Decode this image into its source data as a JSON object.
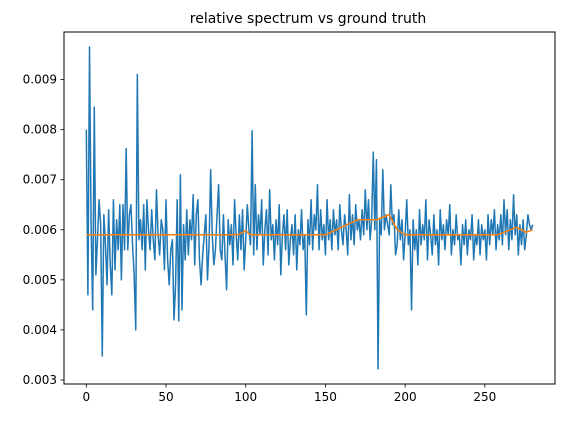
{
  "chart_data": {
    "type": "line",
    "title": "relative spectrum vs ground truth",
    "xlabel": "",
    "ylabel": "",
    "xlim": [
      -14,
      294
    ],
    "ylim": [
      0.00292,
      0.00995
    ],
    "xticks": [
      0,
      50,
      100,
      150,
      200,
      250
    ],
    "yticks": [
      0.003,
      0.004,
      0.005,
      0.006,
      0.007,
      0.008,
      0.009
    ],
    "ytick_labels": [
      "0.003",
      "0.004",
      "0.005",
      "0.006",
      "0.007",
      "0.008",
      "0.009"
    ],
    "grid": false,
    "legend": false,
    "series": [
      {
        "color": "#1f77b4",
        "x_start": 0,
        "x_step": 1,
        "values": [
          0.008,
          0.0047,
          0.00965,
          0.0061,
          0.0044,
          0.00845,
          0.0051,
          0.0058,
          0.0066,
          0.0061,
          0.00348,
          0.0063,
          0.0057,
          0.0049,
          0.0064,
          0.0053,
          0.0047,
          0.0066,
          0.0052,
          0.0062,
          0.0056,
          0.0065,
          0.005,
          0.0065,
          0.0056,
          0.00762,
          0.0056,
          0.0063,
          0.0065,
          0.0057,
          0.0051,
          0.004,
          0.0091,
          0.0058,
          0.0062,
          0.0056,
          0.0065,
          0.0052,
          0.0066,
          0.006,
          0.0056,
          0.0064,
          0.0058,
          0.0054,
          0.0068,
          0.0059,
          0.0055,
          0.0062,
          0.006,
          0.0052,
          0.0066,
          0.0054,
          0.0049,
          0.0056,
          0.0058,
          0.0042,
          0.0049,
          0.0066,
          0.00418,
          0.0071,
          0.0044,
          0.0061,
          0.0054,
          0.0064,
          0.0055,
          0.0062,
          0.0058,
          0.0067,
          0.0053,
          0.0063,
          0.0066,
          0.0054,
          0.0049,
          0.0055,
          0.0059,
          0.0063,
          0.005,
          0.0057,
          0.0072,
          0.0059,
          0.0053,
          0.0056,
          0.0063,
          0.0069,
          0.0056,
          0.0054,
          0.0063,
          0.0055,
          0.0048,
          0.0062,
          0.0057,
          0.0061,
          0.0053,
          0.0066,
          0.0059,
          0.0054,
          0.0063,
          0.0056,
          0.0064,
          0.0052,
          0.0058,
          0.0065,
          0.006,
          0.0057,
          0.00798,
          0.0055,
          0.0069,
          0.0056,
          0.0063,
          0.0059,
          0.0066,
          0.0053,
          0.006,
          0.0064,
          0.0055,
          0.0068,
          0.0058,
          0.0061,
          0.0054,
          0.0062,
          0.0057,
          0.0065,
          0.0051,
          0.0059,
          0.0063,
          0.0056,
          0.0064,
          0.0053,
          0.0058,
          0.0061,
          0.0055,
          0.0063,
          0.0052,
          0.006,
          0.0057,
          0.0064,
          0.0056,
          0.0059,
          0.0043,
          0.0062,
          0.0057,
          0.0066,
          0.0056,
          0.0063,
          0.006,
          0.0069,
          0.0056,
          0.0064,
          0.0058,
          0.0061,
          0.0055,
          0.0066,
          0.0058,
          0.0062,
          0.0056,
          0.0064,
          0.0059,
          0.0062,
          0.0056,
          0.0065,
          0.006,
          0.0057,
          0.0063,
          0.006,
          0.0055,
          0.0067,
          0.0058,
          0.0063,
          0.0057,
          0.0065,
          0.006,
          0.0062,
          0.0058,
          0.0064,
          0.0059,
          0.0068,
          0.006,
          0.0066,
          0.0058,
          0.0062,
          0.00755,
          0.006,
          0.0074,
          0.00322,
          0.0062,
          0.0059,
          0.0072,
          0.006,
          0.0063,
          0.0061,
          0.0059,
          0.0069,
          0.0061,
          0.0063,
          0.0055,
          0.0057,
          0.0064,
          0.0058,
          0.0062,
          0.0054,
          0.0059,
          0.0066,
          0.0057,
          0.006,
          0.0044,
          0.0062,
          0.0056,
          0.006,
          0.0053,
          0.0064,
          0.0057,
          0.0061,
          0.0058,
          0.0066,
          0.0054,
          0.0062,
          0.0059,
          0.0055,
          0.0063,
          0.0057,
          0.006,
          0.0053,
          0.0064,
          0.0058,
          0.0061,
          0.0056,
          0.0062,
          0.0059,
          0.0065,
          0.0055,
          0.006,
          0.0057,
          0.0063,
          0.0058,
          0.0059,
          0.0053,
          0.0061,
          0.0057,
          0.0062,
          0.0055,
          0.006,
          0.0058,
          0.0063,
          0.0054,
          0.0059,
          0.0057,
          0.0062,
          0.0055,
          0.0061,
          0.0058,
          0.006,
          0.0054,
          0.0063,
          0.0057,
          0.0062,
          0.0059,
          0.0064,
          0.0056,
          0.0061,
          0.0058,
          0.0063,
          0.0057,
          0.0066,
          0.0059,
          0.0064,
          0.0056,
          0.0062,
          0.0058,
          0.0067,
          0.0059,
          0.0063,
          0.0055,
          0.0061,
          0.0057,
          0.0062,
          0.0056,
          0.0059,
          0.0063,
          0.0061,
          0.006,
          0.0061
        ]
      },
      {
        "color": "#ff7f0e",
        "x": [
          0,
          30,
          35,
          95,
          100,
          103,
          150,
          160,
          170,
          182,
          190,
          195,
          200,
          258,
          262,
          270,
          276,
          280
        ],
        "values": [
          0.0059,
          0.0059,
          0.0059,
          0.0059,
          0.00598,
          0.0059,
          0.0059,
          0.00605,
          0.0062,
          0.0062,
          0.0063,
          0.006,
          0.0059,
          0.0059,
          0.00595,
          0.00605,
          0.00595,
          0.006
        ]
      }
    ]
  }
}
